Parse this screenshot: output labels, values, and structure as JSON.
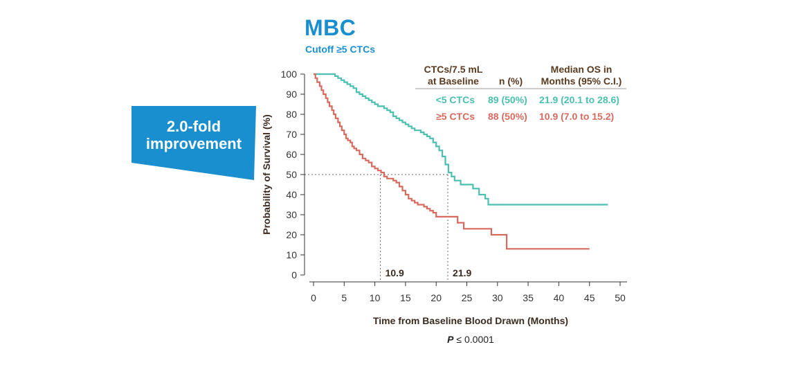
{
  "title": "MBC",
  "subtitle": "Cutoff ≥5 CTCs",
  "banner": {
    "line1": "2.0-fold",
    "line2": "improvement",
    "color": "#1a8fcf"
  },
  "legend_table": {
    "headers": {
      "group_line1": "CTCs/7.5 mL",
      "group_line2": "at Baseline",
      "n": "n (%)",
      "os_line1": "Median OS in",
      "os_line2": "Months (95% C.I.)"
    },
    "rows": [
      {
        "group": "<5 CTCs",
        "n": "89 (50%)",
        "os": "21.9 (20.1 to 28.6)",
        "color": "#4bbfb0"
      },
      {
        "group": "≥5 CTCs",
        "n": "88 (50%)",
        "os": "10.9 (7.0 to 15.2)",
        "color": "#d76a5e"
      }
    ]
  },
  "pvalue": {
    "label": "P",
    "text": "≤ 0.0001"
  },
  "chart_data": {
    "type": "line",
    "step": true,
    "xlabel": "Time from Baseline Blood Drawn (Months)",
    "ylabel": "Probability of Survival (%)",
    "xlim": [
      0,
      50
    ],
    "ylim": [
      0,
      100
    ],
    "xticks": [
      0,
      5,
      10,
      15,
      20,
      25,
      30,
      35,
      40,
      45,
      50
    ],
    "yticks": [
      0,
      10,
      20,
      30,
      40,
      50,
      60,
      70,
      80,
      90,
      100
    ],
    "series": [
      {
        "name": "<5 CTCs",
        "color": "#4bbfb0",
        "x": [
          0,
          3,
          3.5,
          4,
          4.5,
          5,
          5.5,
          6,
          6.5,
          7,
          7.5,
          8,
          8.5,
          9,
          9.5,
          10,
          10.5,
          11,
          11.5,
          12,
          12.5,
          13,
          13.5,
          14,
          14.5,
          15,
          15.5,
          16,
          16.5,
          17,
          17.5,
          18,
          18.5,
          19,
          19.5,
          20,
          20.5,
          21,
          21.5,
          22,
          22.5,
          23,
          24,
          26,
          27,
          28,
          28.5,
          48
        ],
        "y": [
          100,
          100,
          99,
          98,
          97,
          96,
          95,
          94,
          93,
          91,
          90,
          89,
          88,
          87,
          86,
          85,
          84,
          84,
          83,
          82,
          81,
          79,
          78,
          77,
          76,
          75,
          74,
          73,
          72,
          72,
          71,
          70,
          69,
          68,
          66,
          64,
          62,
          59,
          55,
          51,
          49,
          47,
          45,
          43,
          40,
          38,
          35,
          35
        ]
      },
      {
        "name": "≥5 CTCs",
        "color": "#d76a5e",
        "x": [
          0,
          0.3,
          0.6,
          1,
          1.3,
          1.6,
          2,
          2.3,
          2.6,
          3,
          3.3,
          3.6,
          4,
          4.3,
          4.6,
          5,
          5.3,
          5.6,
          6,
          6.3,
          6.6,
          7,
          7.5,
          8,
          8.5,
          9,
          9.5,
          10,
          10.5,
          11,
          11.5,
          12,
          12.5,
          13,
          13.5,
          14,
          14.5,
          15,
          15.5,
          16,
          16.5,
          17,
          17.5,
          18,
          18.5,
          19,
          19.5,
          20,
          22,
          23.5,
          24.5,
          29,
          31,
          31.5,
          45
        ],
        "y": [
          100,
          98,
          96,
          94,
          92,
          90,
          88,
          86,
          84,
          82,
          80,
          78,
          76,
          74,
          72,
          70,
          68,
          67,
          66,
          64,
          63,
          62,
          60,
          58,
          57,
          56,
          54,
          53,
          52,
          51,
          49,
          48,
          48,
          47,
          46,
          44,
          42,
          40,
          38,
          37,
          36,
          35,
          35,
          34,
          33,
          32,
          31,
          29,
          29,
          26,
          23,
          20,
          20,
          13,
          13
        ]
      }
    ],
    "reference": {
      "y": 50,
      "x_values": [
        10.9,
        21.9
      ],
      "labels": [
        "10.9",
        "21.9"
      ]
    }
  }
}
